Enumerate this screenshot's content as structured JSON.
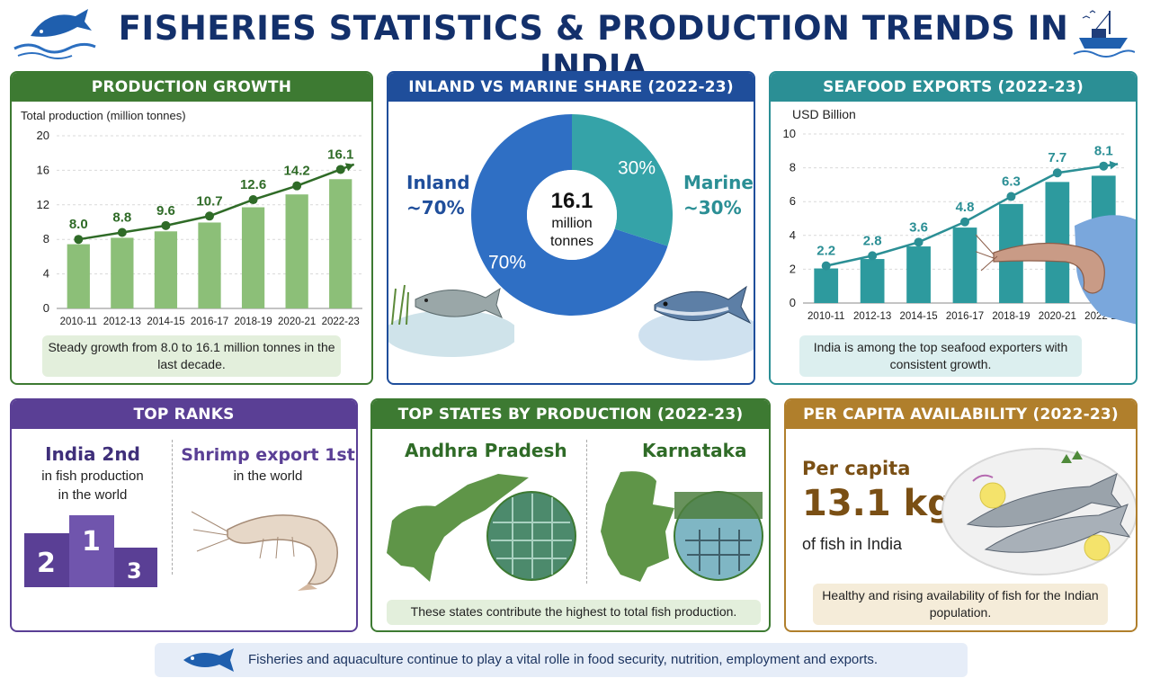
{
  "title": "FISHERIES STATISTICS & PRODUCTION TRENDS IN INDIA",
  "colors": {
    "navy": "#13306b",
    "green": "#3d7a32",
    "blue": "#1f4e9b",
    "teal": "#2b8f95",
    "purple": "#5a3f95",
    "gold": "#b07f2c"
  },
  "growth": {
    "header": "PRODUCTION GROWTH",
    "ylabel": "Total production (million tonnes)",
    "note": "Steady growth from 8.0 to 16.1 million tonnes in the last decade."
  },
  "share": {
    "header": "INLAND VS MARINE SHARE (2022-23)",
    "inland_label": "Inland",
    "inland_pct": "~70%",
    "marine_label": "Marine",
    "marine_pct": "~30%",
    "center_value": "16.1",
    "center_unit_1": "million",
    "center_unit_2": "tonnes",
    "slice_inland": "70%",
    "slice_marine": "30%"
  },
  "exports": {
    "header": "SEAFOOD EXPORTS (2022-23)",
    "ylabel": "USD Billion",
    "note": "India is among the top seafood exporters with consistent growth."
  },
  "ranks": {
    "header": "TOP RANKS",
    "rank1_title": "India 2nd",
    "rank1_line1": "in fish production",
    "rank1_line2": "in the world",
    "rank2_title": "Shrimp export 1st",
    "rank2_line1": "in the world",
    "podium": [
      "2",
      "1",
      "3"
    ]
  },
  "states": {
    "header": "TOP STATES BY PRODUCTION (2022-23)",
    "state1": "Andhra Pradesh",
    "state2": "Karnataka",
    "note": "These states contribute the highest to total fish production."
  },
  "capita": {
    "header": "PER CAPITA AVAILABILITY (2022-23)",
    "line1": "Per capita",
    "value": "13.1 kg",
    "line2": "of fish in India",
    "note": "Healthy and rising availability of fish for the Indian population."
  },
  "footer": "Fisheries and aquaculture continue to play a vital rolle in food security, nutrition, employment and exports.",
  "chart_data": [
    {
      "type": "bar",
      "title": "PRODUCTION GROWTH",
      "ylabel": "Total production (million tonnes)",
      "categories": [
        "2010-11",
        "2012-13",
        "2014-15",
        "2016-17",
        "2018-19",
        "2020-21",
        "2022-23"
      ],
      "values": [
        8.0,
        8.8,
        9.6,
        10.7,
        12.6,
        14.2,
        16.1
      ],
      "labels": [
        "8.0",
        "8.8",
        "9.6",
        "10.7",
        "12.6",
        "14.2",
        "16.1"
      ],
      "yticks": [
        0,
        4,
        8,
        12,
        16,
        20
      ],
      "ylim": [
        0,
        20
      ],
      "grid": true
    },
    {
      "type": "pie",
      "title": "INLAND VS MARINE SHARE (2022-23)",
      "categories": [
        "Inland",
        "Marine"
      ],
      "values": [
        70,
        30
      ]
    },
    {
      "type": "bar",
      "title": "SEAFOOD EXPORTS (2022-23)",
      "ylabel": "USD Billion",
      "categories": [
        "2010-11",
        "2012-13",
        "2014-15",
        "2016-17",
        "2018-19",
        "2020-21",
        "2022-23"
      ],
      "values": [
        2.2,
        2.8,
        3.6,
        4.8,
        6.3,
        7.7,
        8.1
      ],
      "labels": [
        "2.2",
        "2.8",
        "3.6",
        "4.8",
        "6.3",
        "7.7",
        "8.1"
      ],
      "yticks": [
        0,
        2,
        4,
        6,
        8,
        10
      ],
      "ylim": [
        0,
        10
      ],
      "grid": true
    }
  ]
}
